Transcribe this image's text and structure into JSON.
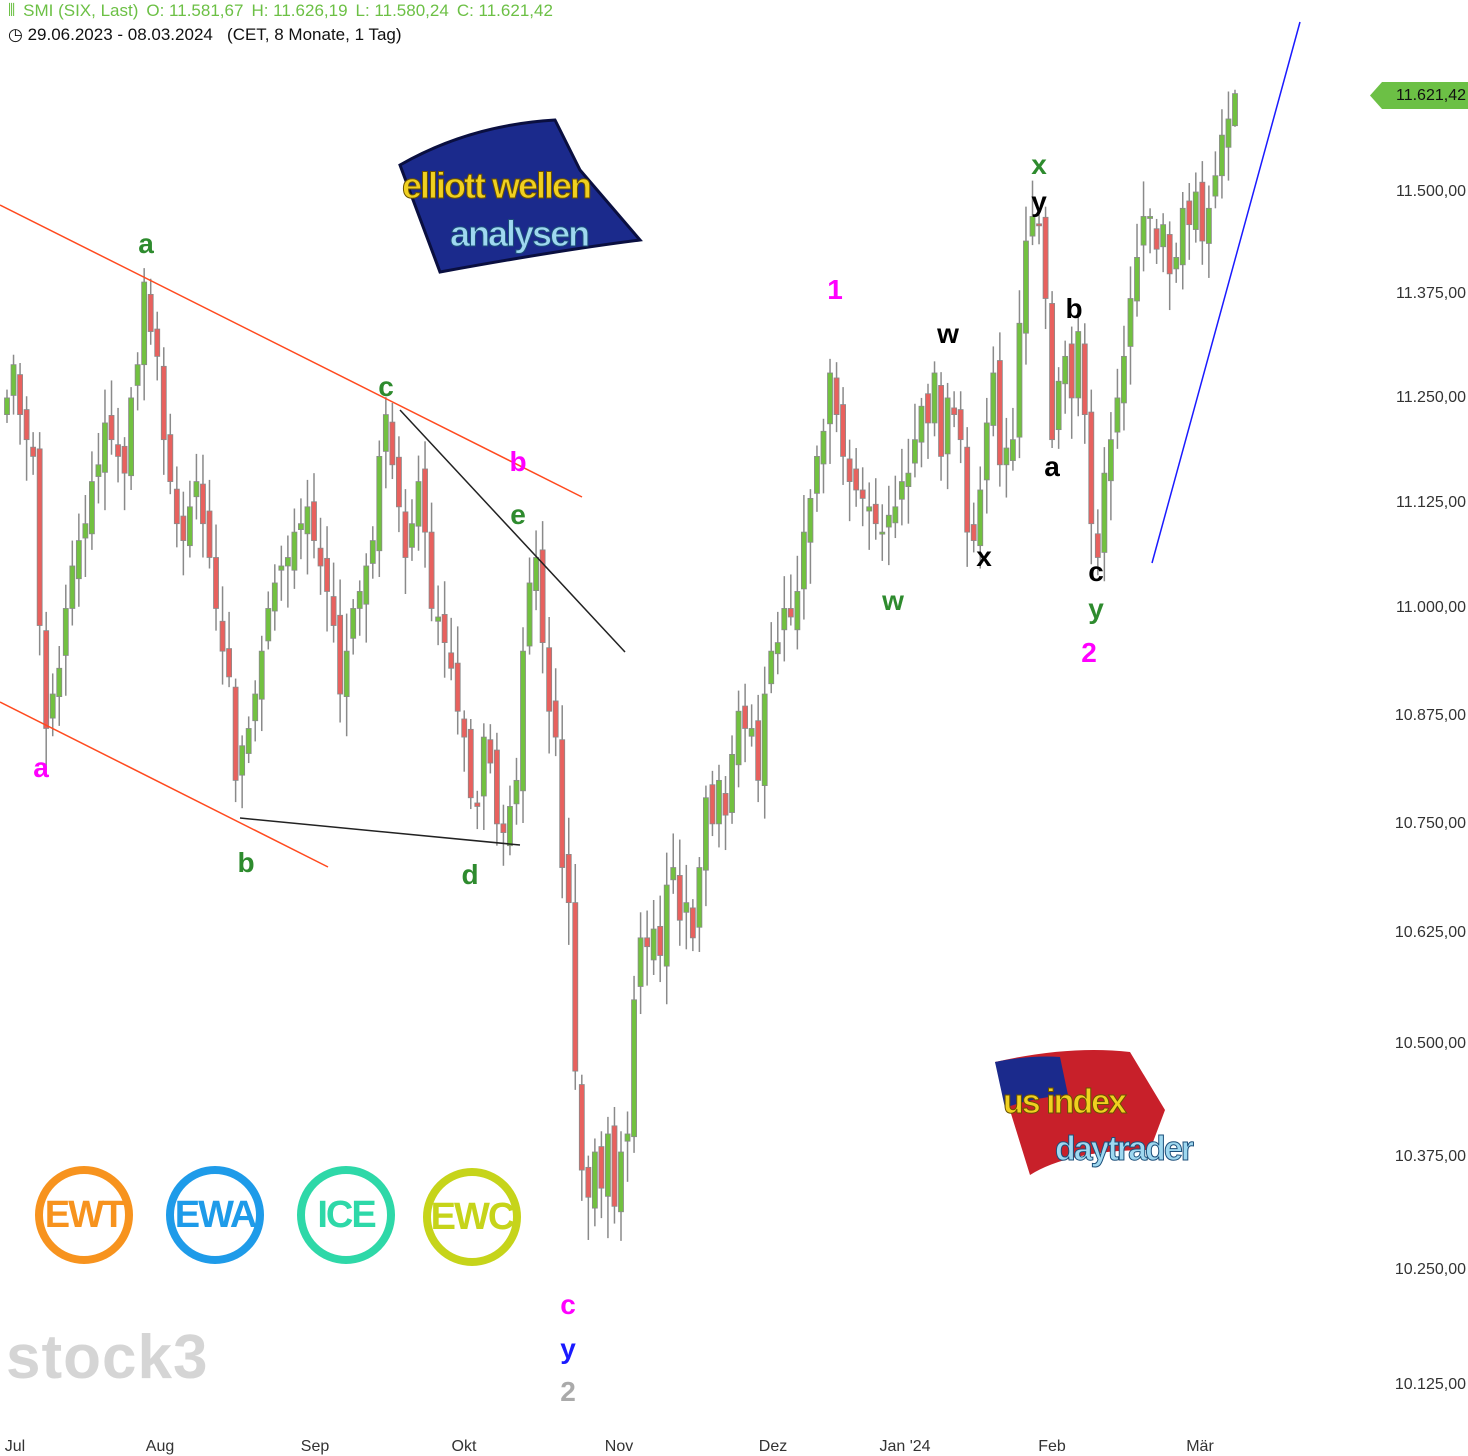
{
  "header": {
    "symbol": "SMI (SIX, Last)",
    "open": "O: 11.581,67",
    "high": "H: 11.626,19",
    "low": "L: 11.580,24",
    "close": "C: 11.621,42",
    "range": "29.06.2023 - 08.03.2024",
    "meta": "(CET, 8 Monate, 1 Tag)",
    "icons": [
      "candles-icon",
      "clock-icon"
    ]
  },
  "logos": {
    "top": "elliott wellen analysen",
    "bottom": "us index daytrader",
    "badges": [
      {
        "text": "EWT",
        "color": "#f7931e"
      },
      {
        "text": "EWA",
        "color": "#1e9be9"
      },
      {
        "text": "ICE",
        "color": "#2ed8a8"
      },
      {
        "text": "EWC",
        "color": "#c6d41a"
      }
    ],
    "watermark": "stock3"
  },
  "chart_data": {
    "type": "candlestick",
    "title": "SMI (SIX, Last)",
    "scale": "log",
    "ylim": [
      10060,
      11760
    ],
    "y_ticks": [
      "11.500,00",
      "11.375,00",
      "11.250,00",
      "11.125,00",
      "11.000,00",
      "10.875,00",
      "10.750,00",
      "10.625,00",
      "10.500,00",
      "10.375,00",
      "10.250,00",
      "10.125,00"
    ],
    "y_tick_values": [
      11500,
      11375,
      11250,
      11125,
      11000,
      10875,
      10750,
      10625,
      10500,
      10375,
      10250,
      10125
    ],
    "x_ticks": [
      "Jul",
      "Aug",
      "Sep",
      "Okt",
      "Nov",
      "Dez",
      "Jan '24",
      "Feb",
      "Mär"
    ],
    "last_price": "11.621,42",
    "colors": {
      "up": "#72c140",
      "down": "#e8615e",
      "wick": "#8a8a8a",
      "channel": "#ff4a1f",
      "trend": "#222222",
      "support": "#1a1aff"
    },
    "closes": [
      11250,
      11290,
      11230,
      11200,
      11180,
      10980,
      10860,
      10900,
      10930,
      11000,
      11050,
      11080,
      11100,
      11150,
      11170,
      11220,
      11200,
      11180,
      11160,
      11250,
      11290,
      11390,
      11330,
      11300,
      11200,
      11150,
      11100,
      11080,
      11120,
      11150,
      11100,
      11060,
      11000,
      10950,
      10920,
      10800,
      10840,
      10860,
      10900,
      10950,
      11000,
      11030,
      11050,
      11060,
      11090,
      11100,
      11120,
      11080,
      11050,
      11020,
      10980,
      10900,
      10950,
      11000,
      11020,
      11050,
      11080,
      11180,
      11230,
      11170,
      11120,
      11060,
      11100,
      11150,
      11090,
      11000,
      10990,
      10960,
      10930,
      10880,
      10850,
      10780,
      10770,
      10850,
      10820,
      10750,
      10740,
      10770,
      10800,
      10950,
      11030,
      11060,
      10960,
      10880,
      10850,
      10700,
      10660,
      10470,
      10360,
      10330,
      10380,
      10340,
      10400,
      10320,
      10380,
      10400,
      10550,
      10620,
      10610,
      10630,
      10600,
      10680,
      10700,
      10640,
      10660,
      10620,
      10700,
      10780,
      10750,
      10800,
      10760,
      10830,
      10880,
      10860,
      10860,
      10800,
      10900,
      10950,
      10960,
      11000,
      10990,
      11020,
      11090,
      11130,
      11180,
      11210,
      11280,
      11230,
      11180,
      11150,
      11140,
      11130,
      11120,
      11100,
      11090,
      11110,
      11120,
      11150,
      11160,
      11200,
      11240,
      11220,
      11280,
      11180,
      11250,
      11230,
      11200,
      11090,
      11080,
      11140,
      11220,
      11280,
      11170,
      11190,
      11200,
      11340,
      11440,
      11470,
      11460,
      11370,
      11200,
      11270,
      11300,
      11250,
      11330,
      11230,
      11100,
      11060,
      11160,
      11200,
      11250,
      11300,
      11370,
      11420,
      11470,
      11470,
      11430,
      11460,
      11400,
      11420,
      11480,
      11460,
      11500,
      11440,
      11480,
      11520,
      11570,
      11590,
      11621.42
    ],
    "annotations": [
      {
        "text": "a",
        "color": "#2e8b2e"
      },
      {
        "text": "a",
        "color": "#ff00ff"
      },
      {
        "text": "b",
        "color": "#2e8b2e"
      },
      {
        "text": "c",
        "color": "#2e8b2e"
      },
      {
        "text": "b",
        "color": "#ff00ff"
      },
      {
        "text": "e",
        "color": "#2e8b2e"
      },
      {
        "text": "d",
        "color": "#2e8b2e"
      },
      {
        "text": "c",
        "color": "#ff00ff"
      },
      {
        "text": "y",
        "color": "#1a1aff"
      },
      {
        "text": "2",
        "color": "#aaaaaa"
      },
      {
        "text": "1",
        "color": "#ff00ff"
      },
      {
        "text": "w",
        "color": "#2e8b2e"
      },
      {
        "text": "w",
        "color": "#000000"
      },
      {
        "text": "x",
        "color": "#000000"
      },
      {
        "text": "x",
        "color": "#2e8b2e"
      },
      {
        "text": "y",
        "color": "#000000"
      },
      {
        "text": "b",
        "color": "#000000"
      },
      {
        "text": "a",
        "color": "#000000"
      },
      {
        "text": "c",
        "color": "#000000"
      },
      {
        "text": "y",
        "color": "#2e8b2e"
      },
      {
        "text": "2",
        "color": "#ff00ff"
      }
    ]
  }
}
